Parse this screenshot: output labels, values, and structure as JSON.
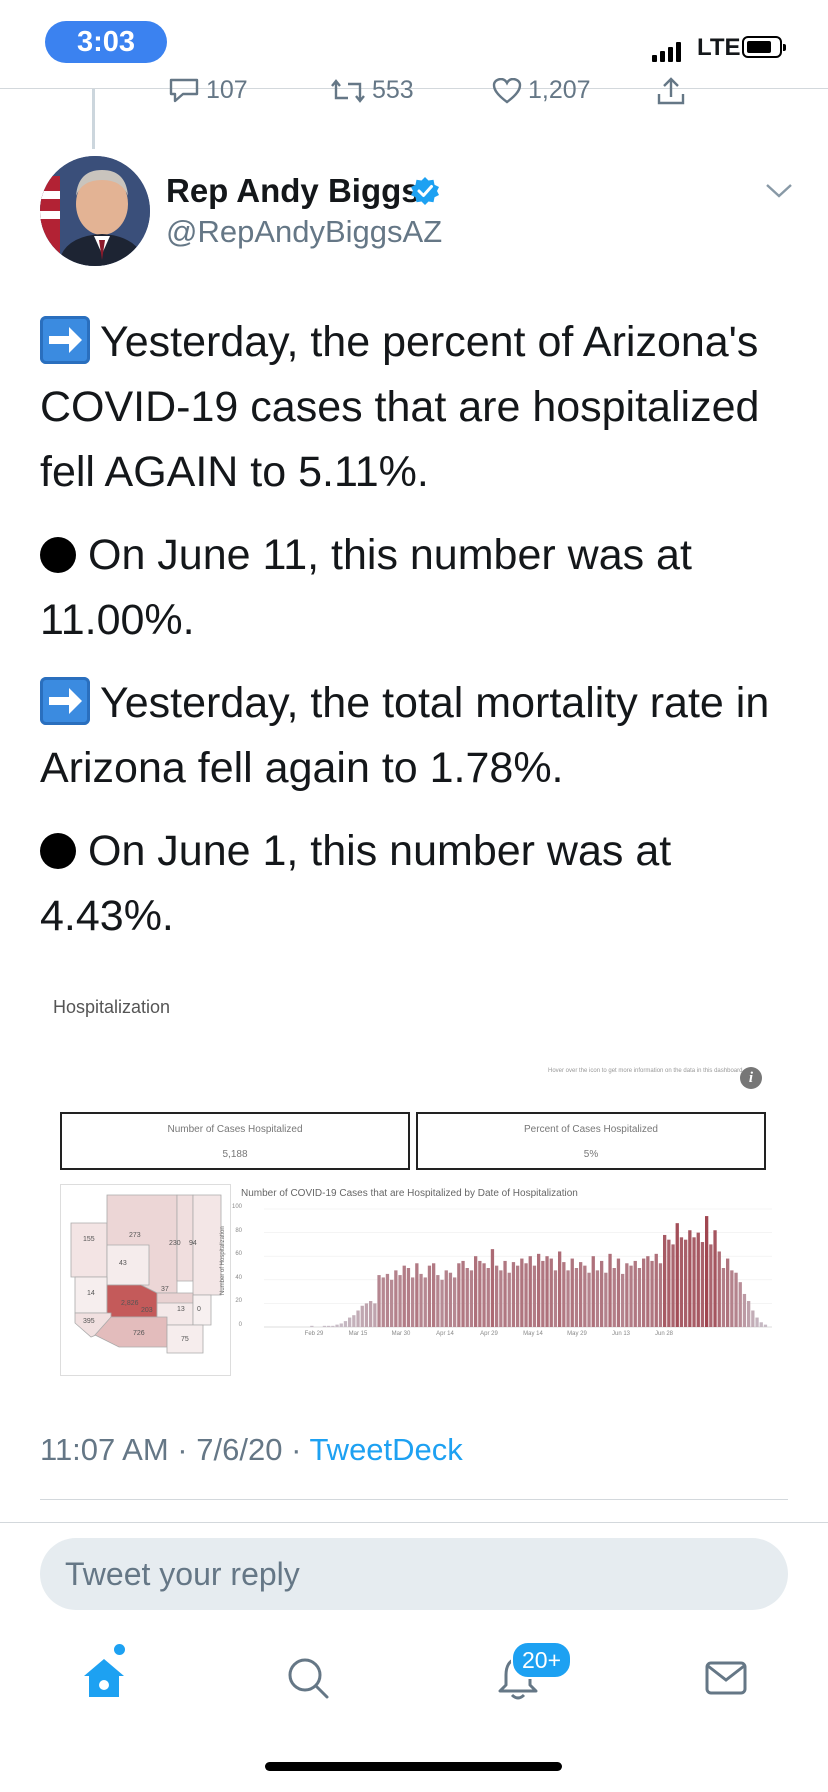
{
  "status_bar": {
    "time": "3:03",
    "network": "LTE"
  },
  "prev_tweet_actions": {
    "replies": "107",
    "retweets": "553",
    "likes": "1,207"
  },
  "author": {
    "name": "Rep Andy Biggs",
    "handle": "@RepAndyBiggsAZ",
    "verified": true
  },
  "tweet": {
    "paragraphs": [
      {
        "marker": "arrow",
        "text": "Yesterday, the percent of Arizona's COVID-19 cases that are hospitalized fell AGAIN to 5.11%."
      },
      {
        "marker": "dot",
        "text": "On June 11, this number was at 11.00%."
      },
      {
        "marker": "arrow",
        "text": "Yesterday, the total mortality rate in Arizona fell again to 1.78%."
      },
      {
        "marker": "dot",
        "text": "On June 1, this number was at 4.43%."
      }
    ]
  },
  "dashboard": {
    "title": "Hospitalization",
    "hint": "Hover over the icon to get more information on the data in this dashboard.",
    "info_icon": "i",
    "kpis": [
      {
        "label": "Number of Cases Hospitalized",
        "value": "5,188"
      },
      {
        "label": "Percent of Cases Hospitalized",
        "value": "5%"
      }
    ],
    "map_counts": [
      "155",
      "273",
      "230",
      "94",
      "43",
      "14",
      "2,826",
      "37",
      "203",
      "13",
      "0",
      "395",
      "726",
      "75"
    ],
    "chart_data": {
      "type": "bar",
      "title": "Number of COVID-19 Cases that are Hospitalized by Date of Hospitalization",
      "ylabel": "Number of Hospitalization",
      "ylim": [
        0,
        100
      ],
      "yticks": [
        "100",
        "80",
        "60",
        "40",
        "20",
        "0"
      ],
      "xticks": [
        "Feb 29",
        "Mar 15",
        "Mar 30",
        "Apr 14",
        "Apr 29",
        "May 14",
        "May 29",
        "Jun 13",
        "Jun 28"
      ],
      "values": [
        0,
        0,
        0,
        0,
        0,
        0,
        0,
        0,
        0,
        0,
        0,
        1,
        0,
        0,
        1,
        1,
        1,
        2,
        3,
        5,
        8,
        10,
        14,
        18,
        20,
        22,
        20,
        44,
        42,
        45,
        40,
        48,
        44,
        52,
        50,
        42,
        54,
        45,
        42,
        52,
        54,
        44,
        40,
        48,
        46,
        42,
        54,
        56,
        50,
        48,
        60,
        56,
        54,
        50,
        66,
        52,
        48,
        56,
        46,
        55,
        52,
        58,
        54,
        60,
        52,
        62,
        56,
        60,
        58,
        48,
        64,
        55,
        48,
        58,
        50,
        55,
        52,
        46,
        60,
        48,
        56,
        46,
        62,
        50,
        58,
        45,
        54,
        52,
        56,
        50,
        58,
        60,
        56,
        62,
        54,
        78,
        74,
        70,
        88,
        76,
        74,
        82,
        76,
        80,
        72,
        94,
        70,
        82,
        64,
        50,
        58,
        48,
        46,
        38,
        28,
        22,
        14,
        8,
        4,
        2
      ]
    }
  },
  "meta": {
    "time": "11:07 AM",
    "date": "7/6/20",
    "source": "TweetDeck"
  },
  "reply": {
    "placeholder": "Tweet your reply"
  },
  "tabbar": {
    "notifications_badge": "20+"
  }
}
